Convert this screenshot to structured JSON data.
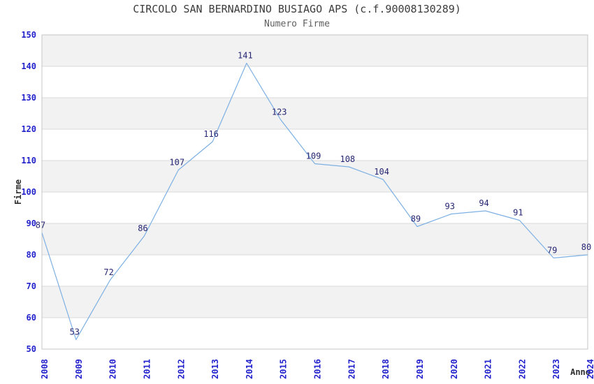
{
  "chart_data": {
    "type": "line",
    "title": "CIRCOLO SAN BERNARDINO BUSIAGO APS (c.f.90008130289)",
    "subtitle": "Numero Firme",
    "xlabel": "Anno",
    "ylabel": "Firme",
    "x": [
      "2008",
      "2009",
      "2010",
      "2011",
      "2012",
      "2013",
      "2014",
      "2015",
      "2016",
      "2017",
      "2018",
      "2019",
      "2020",
      "2021",
      "2022",
      "2023",
      "2024"
    ],
    "values": [
      87,
      53,
      72,
      86,
      107,
      116,
      141,
      123,
      109,
      108,
      104,
      89,
      93,
      94,
      91,
      79,
      80
    ],
    "series_name": "Numero Firme",
    "ylim": [
      50,
      150
    ],
    "ytick_step": 10,
    "yticks": [
      50,
      60,
      70,
      80,
      90,
      100,
      110,
      120,
      130,
      140,
      150
    ],
    "grid": "horizontal-bands",
    "legend": "none",
    "data_labels": true,
    "colors": {
      "line": "#7db0e3",
      "tick_label": "#2222cc",
      "data_label": "#262673",
      "band": "#f2f2f2",
      "band_alt": "#ffffff",
      "grid_line": "#d9d9d9",
      "plot_border": "#c6c6c6",
      "title": "#3c3c3c",
      "subtitle": "#5f5f5f",
      "axis_title": "#2e2e2e",
      "background": "#ffffff"
    }
  }
}
